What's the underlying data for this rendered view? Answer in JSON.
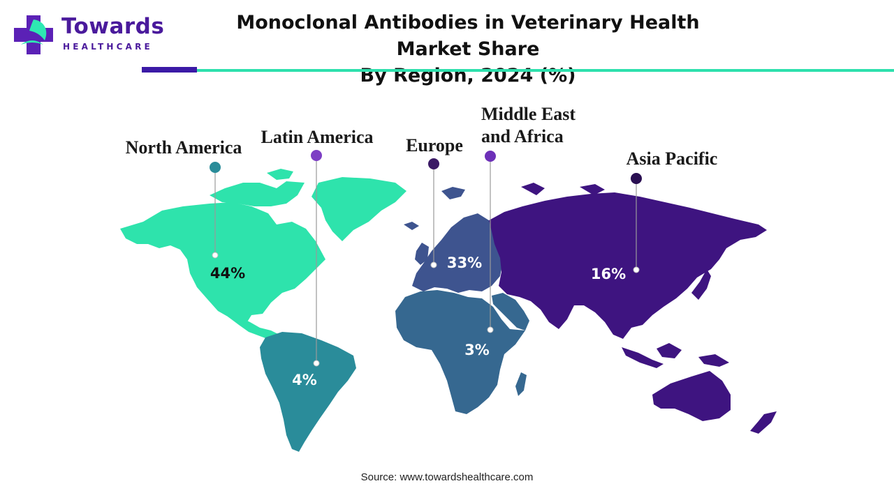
{
  "brand": {
    "name": "Towards",
    "sub": "HEALTHCARE",
    "name_color": "#4a1a9c",
    "cross_purple": "#5b21b6",
    "cross_green": "#2ee8b2"
  },
  "header": {
    "title_line1": "Monoclonal Antibodies in Veterinary Health Market Share",
    "title_line2": "By Region, 2024 (%)",
    "accent_bar_color": "#3b1aa6",
    "accent_line_color": "#2ee0ad"
  },
  "map": {
    "regions": [
      {
        "id": "north-america",
        "name": "North America",
        "value": "44%",
        "fill": "#2ee3ac",
        "marker_color": "#2a8c99",
        "value_color": "#111111"
      },
      {
        "id": "latin-america",
        "name": "Latin America",
        "value": "4%",
        "fill": "#2a8c9a",
        "marker_color": "#7d3ec4",
        "value_color": "#ffffff"
      },
      {
        "id": "europe",
        "name": "Europe",
        "value": "33%",
        "fill": "#3e548f",
        "marker_color": "#3b1a66",
        "value_color": "#ffffff"
      },
      {
        "id": "middle-east-africa",
        "name_line1": "Middle East",
        "name_line2": "and Africa",
        "value": "3%",
        "fill": "#366890",
        "marker_color": "#6d30b8",
        "value_color": "#ffffff"
      },
      {
        "id": "asia-pacific",
        "name": "Asia Pacific",
        "value": "16%",
        "fill": "#3e1480",
        "marker_color": "#2a0f52",
        "value_color": "#ffffff"
      }
    ]
  },
  "footer": {
    "source": "Source: www.towardshealthcare.com"
  }
}
